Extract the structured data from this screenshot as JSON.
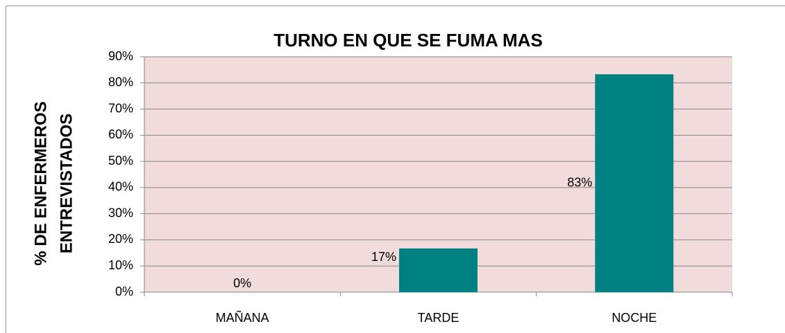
{
  "chart_data": {
    "type": "bar",
    "title": "TURNO EN QUE SE FUMA MAS",
    "ylabel": [
      "% DE ENFERMEROS",
      "ENTREVISTADOS"
    ],
    "categories": [
      "MAÑANA",
      "TARDE",
      "NOCHE"
    ],
    "values": [
      0,
      16.7,
      83.3
    ],
    "value_labels": [
      "0%",
      "17%",
      "83%"
    ],
    "color": "#008080",
    "ylim": [
      0,
      90
    ],
    "yticks": [
      {
        "value": 0,
        "label": "0%"
      },
      {
        "value": 10,
        "label": "10%"
      },
      {
        "value": 20,
        "label": "20%"
      },
      {
        "value": 30,
        "label": "30%"
      },
      {
        "value": 40,
        "label": "40%"
      },
      {
        "value": 50,
        "label": "50%"
      },
      {
        "value": 60,
        "label": "60%"
      },
      {
        "value": 70,
        "label": "70%"
      },
      {
        "value": 80,
        "label": "80%"
      },
      {
        "value": 90,
        "label": "90%"
      }
    ],
    "grid": true
  }
}
